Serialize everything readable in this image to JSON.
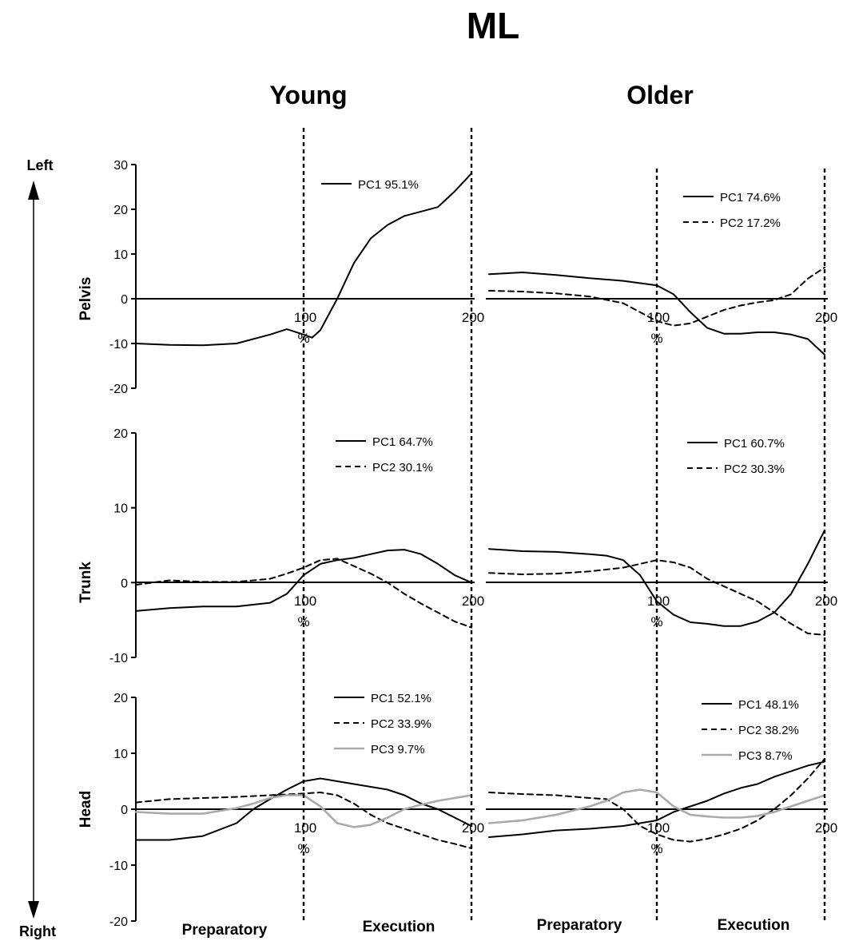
{
  "title": "ML",
  "columns": [
    "Young",
    "Older"
  ],
  "direction": {
    "top": "Left",
    "bottom": "Right"
  },
  "phases": [
    "Preparatory",
    "Execution"
  ],
  "x_unit": "%",
  "chart_data": [
    {
      "type": "line",
      "title": "Pelvis",
      "group": "Young",
      "ylabel": "Pelvis",
      "xlim": [
        0,
        200
      ],
      "ylim": [
        -20,
        30
      ],
      "yticks": [
        -20,
        -10,
        0,
        10,
        20,
        30
      ],
      "xticks": [
        100,
        200
      ],
      "event_lines_x": [
        100,
        200
      ],
      "series": [
        {
          "name": "PC1 95.1%",
          "style": "solid",
          "color": "#000000",
          "x": [
            0,
            20,
            40,
            60,
            80,
            90,
            100,
            105,
            110,
            120,
            130,
            140,
            150,
            160,
            170,
            180,
            190,
            200
          ],
          "y": [
            -10,
            -10.3,
            -10.4,
            -10,
            -8,
            -6.8,
            -8,
            -8.7,
            -7,
            0,
            8,
            13.5,
            16.5,
            18.5,
            19.5,
            20.5,
            24,
            28
          ]
        }
      ]
    },
    {
      "type": "line",
      "title": "Pelvis",
      "group": "Older",
      "ylabel": "",
      "xlim": [
        0,
        200
      ],
      "ylim": [
        -20,
        30
      ],
      "yticks": [
        -20,
        -10,
        0,
        10,
        20,
        30
      ],
      "xticks": [
        100,
        200
      ],
      "event_lines_x": [
        100,
        200
      ],
      "series": [
        {
          "name": "PC1 74.6%",
          "style": "solid",
          "color": "#000000",
          "x": [
            0,
            20,
            40,
            60,
            80,
            100,
            110,
            120,
            130,
            140,
            150,
            160,
            170,
            180,
            190,
            200
          ],
          "y": [
            5.5,
            5.9,
            5.3,
            4.6,
            4,
            3,
            1,
            -3,
            -6.5,
            -7.8,
            -7.8,
            -7.5,
            -7.5,
            -8,
            -9,
            -12.5
          ]
        },
        {
          "name": "PC2 17.2%",
          "style": "dashed",
          "color": "#000000",
          "x": [
            0,
            20,
            40,
            60,
            80,
            90,
            100,
            110,
            120,
            130,
            140,
            150,
            160,
            170,
            180,
            190,
            200
          ],
          "y": [
            1.8,
            1.6,
            1.2,
            0.5,
            -1,
            -3,
            -5,
            -6,
            -5.5,
            -4,
            -2.5,
            -1.5,
            -0.8,
            -0.3,
            1,
            4.5,
            7
          ]
        }
      ]
    },
    {
      "type": "line",
      "title": "Trunk",
      "group": "Young",
      "ylabel": "Trunk",
      "xlim": [
        0,
        200
      ],
      "ylim": [
        -10,
        20
      ],
      "yticks": [
        -10,
        0,
        10,
        20
      ],
      "xticks": [
        100,
        200
      ],
      "event_lines_x": [
        100,
        200
      ],
      "series": [
        {
          "name": "PC1 64.7%",
          "style": "solid",
          "color": "#000000",
          "x": [
            0,
            20,
            40,
            60,
            80,
            90,
            100,
            110,
            120,
            130,
            140,
            150,
            160,
            170,
            180,
            190,
            200
          ],
          "y": [
            -3.8,
            -3.4,
            -3.2,
            -3.2,
            -2.7,
            -1.5,
            1,
            2.5,
            3,
            3.3,
            3.8,
            4.3,
            4.4,
            3.8,
            2.5,
            1,
            0
          ]
        },
        {
          "name": "PC2 30.1%",
          "style": "dashed",
          "color": "#000000",
          "x": [
            0,
            20,
            40,
            60,
            80,
            90,
            100,
            110,
            120,
            130,
            140,
            150,
            160,
            170,
            180,
            190,
            200
          ],
          "y": [
            -0.3,
            0.3,
            0.1,
            0.1,
            0.5,
            1.2,
            2,
            3,
            3.2,
            2.2,
            1.2,
            0,
            -1.5,
            -2.8,
            -4,
            -5.2,
            -6
          ]
        }
      ]
    },
    {
      "type": "line",
      "title": "Trunk",
      "group": "Older",
      "ylabel": "",
      "xlim": [
        0,
        200
      ],
      "ylim": [
        -10,
        20
      ],
      "yticks": [
        -10,
        0,
        10,
        20
      ],
      "xticks": [
        100,
        200
      ],
      "event_lines_x": [
        100,
        200
      ],
      "series": [
        {
          "name": "PC1 60.7%",
          "style": "solid",
          "color": "#000000",
          "x": [
            0,
            20,
            40,
            60,
            70,
            80,
            90,
            100,
            110,
            120,
            130,
            140,
            150,
            160,
            170,
            180,
            190,
            200
          ],
          "y": [
            4.5,
            4.2,
            4.1,
            3.8,
            3.6,
            3,
            1,
            -2.5,
            -4.3,
            -5.3,
            -5.5,
            -5.8,
            -5.8,
            -5.2,
            -4,
            -1.5,
            2.5,
            7
          ]
        },
        {
          "name": "PC2 30.3%",
          "style": "dashed",
          "color": "#000000",
          "x": [
            0,
            20,
            40,
            60,
            80,
            90,
            100,
            110,
            120,
            130,
            140,
            150,
            160,
            170,
            180,
            190,
            200
          ],
          "y": [
            1.3,
            1.1,
            1.2,
            1.5,
            2,
            2.5,
            3,
            2.7,
            2,
            0.5,
            -0.5,
            -1.5,
            -2.5,
            -4,
            -5.5,
            -6.8,
            -7
          ]
        }
      ]
    },
    {
      "type": "line",
      "title": "Head",
      "group": "Young",
      "ylabel": "Head",
      "xlim": [
        0,
        200
      ],
      "ylim": [
        -20,
        20
      ],
      "yticks": [
        -20,
        -10,
        0,
        10,
        20
      ],
      "xticks": [
        100,
        200
      ],
      "event_lines_x": [
        100,
        200
      ],
      "series": [
        {
          "name": "PC1 52.1%",
          "style": "solid",
          "color": "#000000",
          "x": [
            0,
            20,
            40,
            60,
            70,
            80,
            90,
            100,
            110,
            120,
            130,
            140,
            150,
            160,
            170,
            180,
            190,
            200
          ],
          "y": [
            -5.5,
            -5.5,
            -4.8,
            -2.5,
            0,
            1.8,
            3.5,
            5,
            5.5,
            5,
            4.5,
            4,
            3.5,
            2.5,
            1,
            0,
            -1.5,
            -3
          ]
        },
        {
          "name": "PC2 33.9%",
          "style": "dashed",
          "color": "#000000",
          "x": [
            0,
            20,
            40,
            60,
            80,
            100,
            110,
            120,
            130,
            140,
            150,
            160,
            170,
            180,
            190,
            200
          ],
          "y": [
            1.2,
            1.8,
            2,
            2.2,
            2.5,
            2.8,
            3,
            2.5,
            1,
            -1,
            -2.5,
            -3.5,
            -4.5,
            -5.5,
            -6.2,
            -7
          ]
        },
        {
          "name": "PC3 9.7%",
          "style": "solid",
          "color": "#aaaaaa",
          "x": [
            0,
            20,
            40,
            60,
            70,
            80,
            90,
            100,
            110,
            120,
            130,
            140,
            150,
            160,
            170,
            180,
            190,
            200
          ],
          "y": [
            -0.5,
            -0.8,
            -0.8,
            0.2,
            1,
            2,
            2.5,
            2.5,
            0.5,
            -2.5,
            -3.2,
            -2.8,
            -1.5,
            0,
            0.8,
            1.5,
            2,
            2.5
          ]
        }
      ]
    },
    {
      "type": "line",
      "title": "Head",
      "group": "Older",
      "ylabel": "",
      "xlim": [
        0,
        200
      ],
      "ylim": [
        -20,
        20
      ],
      "yticks": [
        -20,
        -10,
        0,
        10,
        20
      ],
      "xticks": [
        100,
        200
      ],
      "event_lines_x": [
        100,
        200
      ],
      "series": [
        {
          "name": "PC1 48.1%",
          "style": "solid",
          "color": "#000000",
          "x": [
            0,
            20,
            40,
            60,
            80,
            100,
            110,
            120,
            130,
            140,
            150,
            160,
            170,
            180,
            190,
            200
          ],
          "y": [
            -5,
            -4.5,
            -3.8,
            -3.5,
            -3,
            -2,
            -0.5,
            0.5,
            1.5,
            2.8,
            3.8,
            4.5,
            5.8,
            6.8,
            7.8,
            8.5
          ]
        },
        {
          "name": "PC2 38.2%",
          "style": "dashed",
          "color": "#000000",
          "x": [
            0,
            20,
            40,
            60,
            70,
            80,
            90,
            100,
            110,
            120,
            130,
            140,
            150,
            160,
            170,
            180,
            190,
            200
          ],
          "y": [
            3,
            2.7,
            2.5,
            2,
            1.8,
            0,
            -3,
            -4.5,
            -5.5,
            -5.8,
            -5.3,
            -4.5,
            -3.5,
            -2,
            0,
            2.5,
            5.5,
            9
          ]
        },
        {
          "name": "PC3 8.7%",
          "style": "solid",
          "color": "#aaaaaa",
          "x": [
            0,
            20,
            40,
            60,
            70,
            80,
            90,
            100,
            110,
            120,
            130,
            140,
            150,
            160,
            170,
            180,
            190,
            200
          ],
          "y": [
            -2.5,
            -2,
            -1,
            0.5,
            1.5,
            3,
            3.5,
            3,
            0.5,
            -1,
            -1.3,
            -1.5,
            -1.5,
            -1.2,
            -0.5,
            0.5,
            1.5,
            2.5
          ]
        }
      ]
    }
  ]
}
